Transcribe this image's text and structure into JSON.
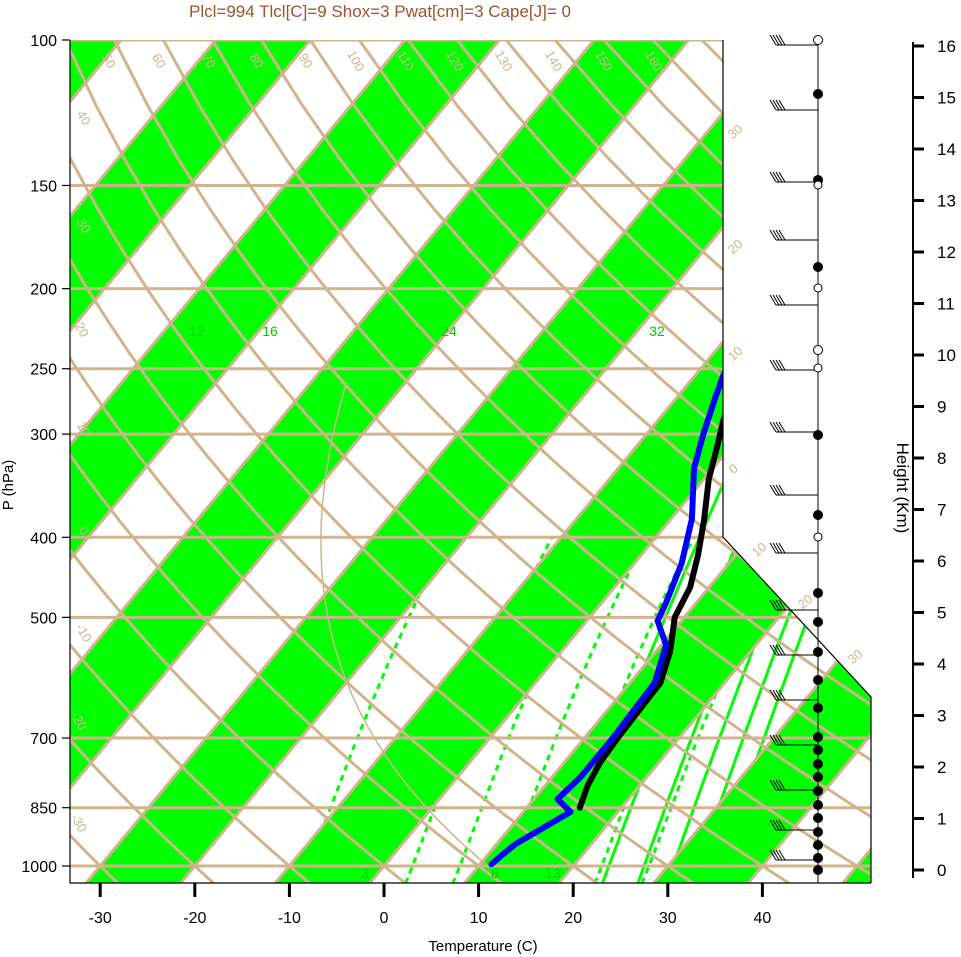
{
  "chart_data": {
    "type": "line",
    "title": "Plcl=994 Tlcl[C]=9 Shox=3 Pwat[cm]=3 Cape[J]= 0",
    "xlabel": "Temperature (C)",
    "ylabel": "P (hPa)",
    "y2label": "Height (Km)",
    "x_ticks": [
      "-30",
      "-20",
      "-10",
      "0",
      "10",
      "20",
      "30",
      "40"
    ],
    "pressure_ticks": [
      "100",
      "150",
      "200",
      "250",
      "300",
      "400",
      "500",
      "700",
      "850",
      "1000"
    ],
    "height_ticks": [
      "0",
      "1",
      "2",
      "3",
      "4",
      "5",
      "6",
      "7",
      "8",
      "9",
      "10",
      "11",
      "12",
      "13",
      "14",
      "15",
      "16"
    ],
    "isotherm_labels": [
      "50",
      "60",
      "70",
      "80",
      "90",
      "100",
      "110",
      "120",
      "130",
      "140",
      "150",
      "160",
      "40",
      "30",
      "20",
      "10",
      "0",
      "-10",
      "-20",
      "-30"
    ],
    "theta_labels": [
      "30",
      "20",
      "10",
      "0",
      "10",
      "20",
      "30"
    ],
    "mixing_ratio_labels": [
      "12",
      "16",
      "24",
      "32"
    ],
    "moist_labels": [
      "3",
      "8",
      "13"
    ],
    "series": [
      {
        "color": "#000000",
        "points": [
          [
            15.6,
            850
          ],
          [
            14.5,
            800
          ],
          [
            13.8,
            750
          ],
          [
            13.5,
            700
          ],
          [
            13.2,
            600
          ],
          [
            11.5,
            550
          ],
          [
            9.0,
            500
          ],
          [
            8.0,
            460
          ],
          [
            6.0,
            420
          ],
          [
            3.5,
            380
          ],
          [
            0.5,
            340
          ],
          [
            -1.5,
            310
          ],
          [
            -3.0,
            290
          ],
          [
            -5.0,
            260
          ],
          [
            -6.2,
            235
          ],
          [
            -5.5,
            212
          ],
          [
            -2.5,
            195
          ],
          [
            0.5,
            180
          ],
          [
            4.5,
            165
          ],
          [
            7.0,
            150
          ],
          [
            9.5,
            135
          ],
          [
            11.0,
            120
          ],
          [
            12.0,
            108
          ],
          [
            13.5,
            100
          ]
        ]
      },
      {
        "color": "#0000ff",
        "points": [
          [
            11.2,
            995
          ],
          [
            11.5,
            970
          ],
          [
            12.0,
            940
          ],
          [
            15.0,
            860
          ],
          [
            12.5,
            830
          ],
          [
            13.0,
            780
          ],
          [
            13.0,
            700
          ],
          [
            12.6,
            600
          ],
          [
            10.5,
            540
          ],
          [
            7.5,
            505
          ],
          [
            6.8,
            480
          ],
          [
            5.0,
            430
          ],
          [
            2.2,
            380
          ],
          [
            -2.0,
            330
          ],
          [
            -4.0,
            300
          ],
          [
            -6.0,
            270
          ],
          [
            -7.0,
            255
          ],
          [
            -8.0,
            230
          ],
          [
            -10.0,
            205
          ],
          [
            -15.0,
            180
          ],
          [
            -18.0,
            165
          ],
          [
            -20.0,
            160
          ],
          [
            -15.0,
            135
          ],
          [
            -8.0,
            112
          ],
          [
            -4.0,
            100
          ]
        ]
      }
    ]
  }
}
